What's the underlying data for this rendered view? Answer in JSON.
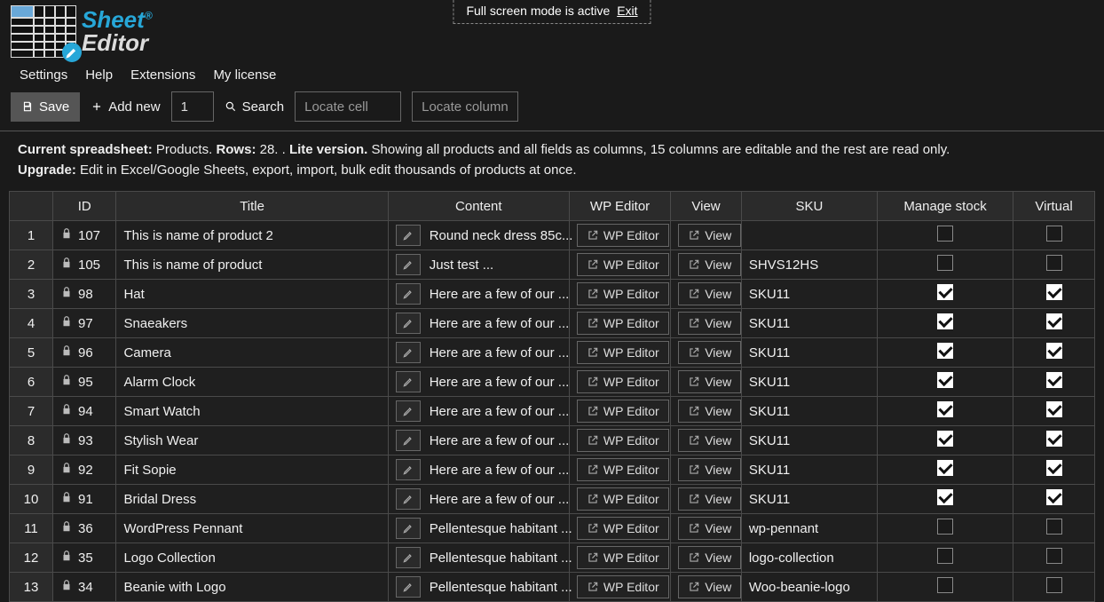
{
  "fullscreen_notice": {
    "text": "Full screen mode is active",
    "exit": "Exit"
  },
  "logo": {
    "line1": "Sheet",
    "line2": "Editor"
  },
  "menu": {
    "settings": "Settings",
    "help": "Help",
    "extensions": "Extensions",
    "license": "My license"
  },
  "toolbar": {
    "save": "Save",
    "add_new": "Add new",
    "add_count": "1",
    "search": "Search",
    "locate_cell_ph": "Locate cell",
    "locate_column_ph": "Locate column"
  },
  "info": {
    "line1_label": "Current spreadsheet:",
    "line1_sheet": "Products.",
    "line1_rows_label": "Rows:",
    "line1_rows": "28. .",
    "line1_lite": "Lite version.",
    "line1_rest": "Showing all products and all fields as columns, 15 columns are editable and the rest are read only.",
    "line2_label": "Upgrade:",
    "line2_rest": "Edit in Excel/Google Sheets, export, import, bulk edit thousands of products at once."
  },
  "columns": {
    "rownum": "",
    "id": "ID",
    "title": "Title",
    "content": "Content",
    "wp_editor": "WP Editor",
    "view": "View",
    "sku": "SKU",
    "manage_stock": "Manage stock",
    "virtual": "Virtual"
  },
  "buttons": {
    "wp_editor": "WP Editor",
    "view": "View"
  },
  "rows": [
    {
      "n": "1",
      "id": "107",
      "title": "This is name of product 2",
      "content": "Round neck dress 85c...",
      "sku": "",
      "stock": false,
      "virtual": false
    },
    {
      "n": "2",
      "id": "105",
      "title": "This is name of product",
      "content": "Just test ...",
      "sku": "SHVS12HS",
      "stock": false,
      "virtual": false
    },
    {
      "n": "3",
      "id": "98",
      "title": "Hat",
      "content": "Here are a few of our ...",
      "sku": "SKU11",
      "stock": true,
      "virtual": true
    },
    {
      "n": "4",
      "id": "97",
      "title": "Snaeakers",
      "content": "Here are a few of our ...",
      "sku": "SKU11",
      "stock": true,
      "virtual": true
    },
    {
      "n": "5",
      "id": "96",
      "title": "Camera",
      "content": "Here are a few of our ...",
      "sku": "SKU11",
      "stock": true,
      "virtual": true
    },
    {
      "n": "6",
      "id": "95",
      "title": "Alarm Clock",
      "content": "Here are a few of our ...",
      "sku": "SKU11",
      "stock": true,
      "virtual": true
    },
    {
      "n": "7",
      "id": "94",
      "title": "Smart Watch",
      "content": "Here are a few of our ...",
      "sku": "SKU11",
      "stock": true,
      "virtual": true
    },
    {
      "n": "8",
      "id": "93",
      "title": "Stylish Wear",
      "content": "Here are a few of our ...",
      "sku": "SKU11",
      "stock": true,
      "virtual": true
    },
    {
      "n": "9",
      "id": "92",
      "title": "Fit Sopie",
      "content": "Here are a few of our ...",
      "sku": "SKU11",
      "stock": true,
      "virtual": true
    },
    {
      "n": "10",
      "id": "91",
      "title": "Bridal Dress",
      "content": "Here are a few of our ...",
      "sku": "SKU11",
      "stock": true,
      "virtual": true
    },
    {
      "n": "11",
      "id": "36",
      "title": "WordPress Pennant",
      "content": "Pellentesque habitant ...",
      "sku": "wp-pennant",
      "stock": false,
      "virtual": false
    },
    {
      "n": "12",
      "id": "35",
      "title": "Logo Collection",
      "content": "Pellentesque habitant ...",
      "sku": "logo-collection",
      "stock": false,
      "virtual": false
    },
    {
      "n": "13",
      "id": "34",
      "title": "Beanie with Logo",
      "content": "Pellentesque habitant ...",
      "sku": "Woo-beanie-logo",
      "stock": false,
      "virtual": false
    }
  ],
  "colors": {
    "bg": "#1a1a1a",
    "cell_bg": "#1f1f1f",
    "header_bg": "#2b2b2b",
    "border": "#4a4a4a",
    "text": "#f0f0f0",
    "accent": "#27a7d8"
  }
}
